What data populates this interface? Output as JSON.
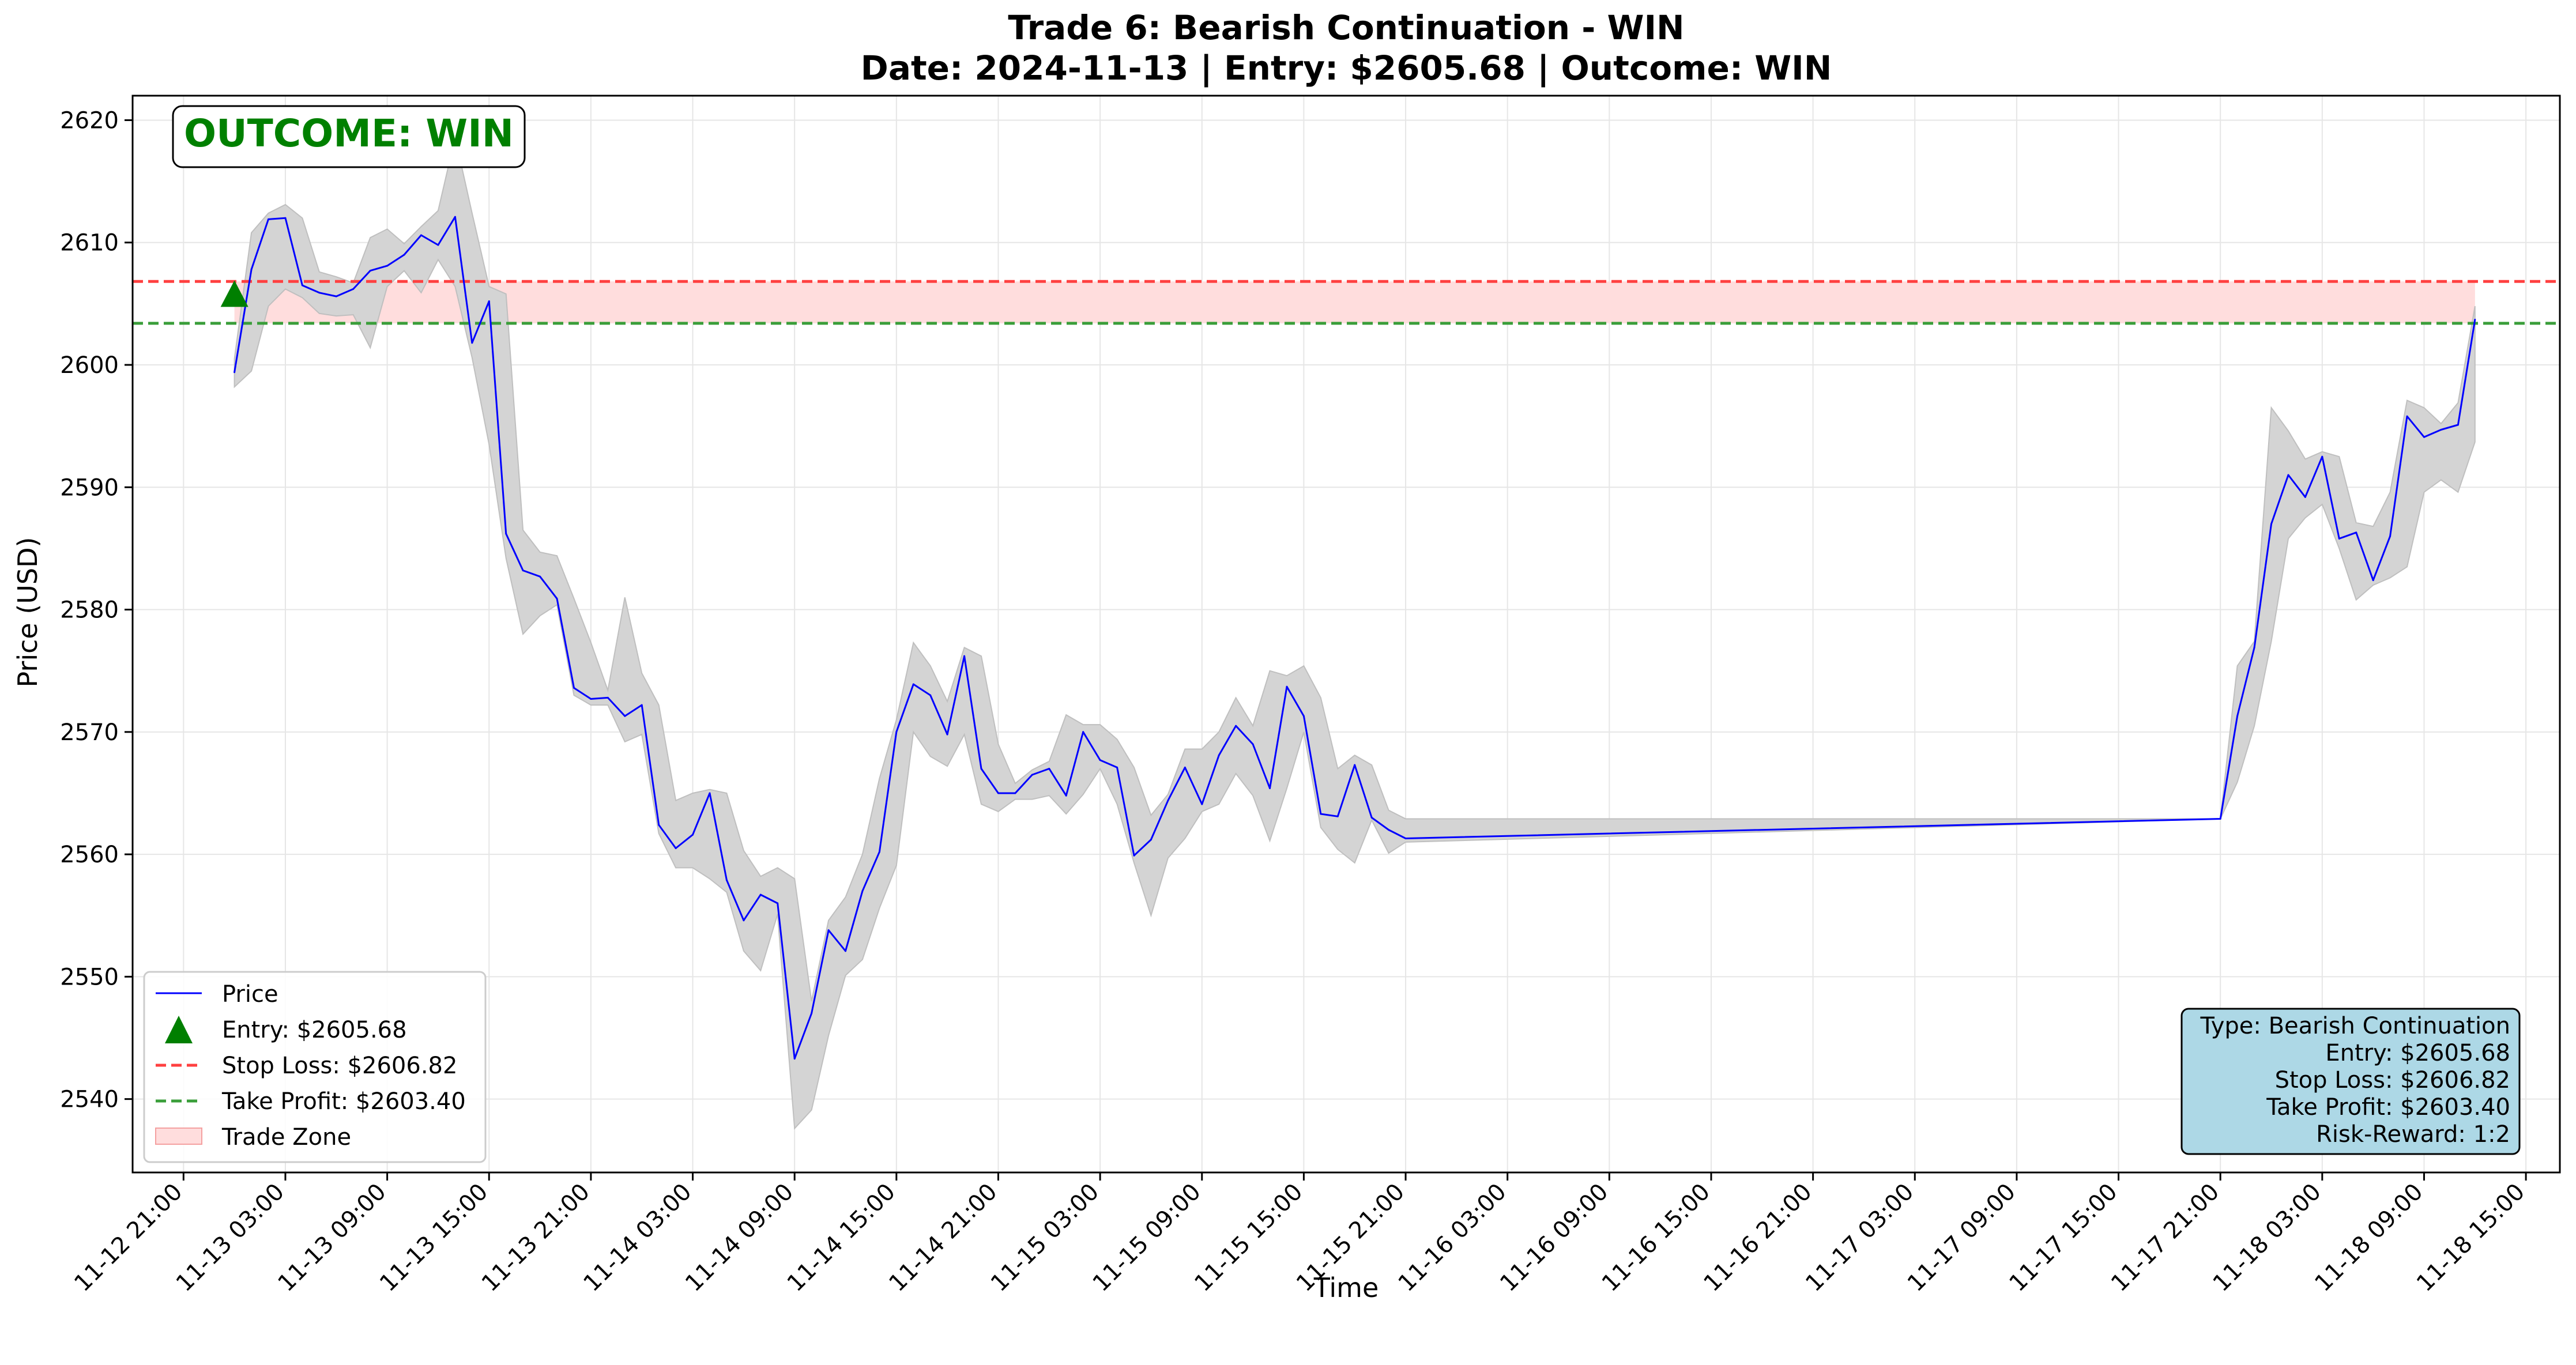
{
  "chart_data": {
    "type": "line",
    "title_line1": "Trade 6: Bearish Continuation - WIN",
    "title_line2": "Date: 2024-11-13 | Entry: $2605.68 | Outcome: WIN",
    "xlabel": "Time",
    "ylabel": "Price (USD)",
    "ylim": [
      2534,
      2622
    ],
    "xlim": [
      "2024-11-12 18:00",
      "2024-11-18 17:00"
    ],
    "y_ticks": [
      2540,
      2550,
      2560,
      2570,
      2580,
      2590,
      2600,
      2610,
      2620
    ],
    "x_ticks": [
      {
        "t": "2024-11-12 21:00",
        "label": "11-12 21:00"
      },
      {
        "t": "2024-11-13 03:00",
        "label": "11-13 03:00"
      },
      {
        "t": "2024-11-13 09:00",
        "label": "11-13 09:00"
      },
      {
        "t": "2024-11-13 15:00",
        "label": "11-13 15:00"
      },
      {
        "t": "2024-11-13 21:00",
        "label": "11-13 21:00"
      },
      {
        "t": "2024-11-14 03:00",
        "label": "11-14 03:00"
      },
      {
        "t": "2024-11-14 09:00",
        "label": "11-14 09:00"
      },
      {
        "t": "2024-11-14 15:00",
        "label": "11-14 15:00"
      },
      {
        "t": "2024-11-14 21:00",
        "label": "11-14 21:00"
      },
      {
        "t": "2024-11-15 03:00",
        "label": "11-15 03:00"
      },
      {
        "t": "2024-11-15 09:00",
        "label": "11-15 09:00"
      },
      {
        "t": "2024-11-15 15:00",
        "label": "11-15 15:00"
      },
      {
        "t": "2024-11-15 21:00",
        "label": "11-15 21:00"
      },
      {
        "t": "2024-11-16 03:00",
        "label": "11-16 03:00"
      },
      {
        "t": "2024-11-16 09:00",
        "label": "11-16 09:00"
      },
      {
        "t": "2024-11-16 15:00",
        "label": "11-16 15:00"
      },
      {
        "t": "2024-11-16 21:00",
        "label": "11-16 21:00"
      },
      {
        "t": "2024-11-17 03:00",
        "label": "11-17 03:00"
      },
      {
        "t": "2024-11-17 09:00",
        "label": "11-17 09:00"
      },
      {
        "t": "2024-11-17 15:00",
        "label": "11-17 15:00"
      },
      {
        "t": "2024-11-17 21:00",
        "label": "11-17 21:00"
      },
      {
        "t": "2024-11-18 03:00",
        "label": "11-18 03:00"
      },
      {
        "t": "2024-11-18 09:00",
        "label": "11-18 09:00"
      },
      {
        "t": "2024-11-18 15:00",
        "label": "11-18 15:00"
      }
    ],
    "price_series": {
      "name": "Price",
      "color": "#0000ff",
      "points": [
        {
          "t": "2024-11-13 00:00",
          "close": 2599.4,
          "low": 2598.2,
          "high": 2600.5
        },
        {
          "t": "2024-11-13 01:00",
          "close": 2607.8,
          "low": 2599.5,
          "high": 2610.8
        },
        {
          "t": "2024-11-13 02:00",
          "close": 2611.9,
          "low": 2604.8,
          "high": 2612.4
        },
        {
          "t": "2024-11-13 03:00",
          "close": 2612.0,
          "low": 2606.2,
          "high": 2613.1
        },
        {
          "t": "2024-11-13 04:00",
          "close": 2606.5,
          "low": 2605.5,
          "high": 2612.0
        },
        {
          "t": "2024-11-13 05:00",
          "close": 2605.9,
          "low": 2604.2,
          "high": 2607.6
        },
        {
          "t": "2024-11-13 06:00",
          "close": 2605.6,
          "low": 2604.0,
          "high": 2607.2
        },
        {
          "t": "2024-11-13 07:00",
          "close": 2606.2,
          "low": 2604.1,
          "high": 2606.7
        },
        {
          "t": "2024-11-13 08:00",
          "close": 2607.7,
          "low": 2601.4,
          "high": 2610.4
        },
        {
          "t": "2024-11-13 09:00",
          "close": 2608.1,
          "low": 2606.4,
          "high": 2611.1
        },
        {
          "t": "2024-11-13 10:00",
          "close": 2609.0,
          "low": 2607.7,
          "high": 2609.9
        },
        {
          "t": "2024-11-13 11:00",
          "close": 2610.6,
          "low": 2605.9,
          "high": 2611.3
        },
        {
          "t": "2024-11-13 12:00",
          "close": 2609.8,
          "low": 2608.6,
          "high": 2612.6
        },
        {
          "t": "2024-11-13 13:00",
          "close": 2612.1,
          "low": 2606.4,
          "high": 2618.6
        },
        {
          "t": "2024-11-13 14:00",
          "close": 2601.8,
          "low": 2600.6,
          "high": 2612.4
        },
        {
          "t": "2024-11-13 15:00",
          "close": 2605.2,
          "low": 2593.5,
          "high": 2606.4
        },
        {
          "t": "2024-11-13 16:00",
          "close": 2586.2,
          "low": 2584.2,
          "high": 2605.8
        },
        {
          "t": "2024-11-13 17:00",
          "close": 2583.2,
          "low": 2578.0,
          "high": 2586.5
        },
        {
          "t": "2024-11-13 18:00",
          "close": 2582.7,
          "low": 2579.5,
          "high": 2584.7
        },
        {
          "t": "2024-11-13 19:00",
          "close": 2580.9,
          "low": 2580.4,
          "high": 2584.4
        },
        {
          "t": "2024-11-13 20:00",
          "close": 2573.6,
          "low": 2573.0,
          "high": 2580.9
        },
        {
          "t": "2024-11-13 21:00",
          "close": 2572.7,
          "low": 2572.2,
          "high": 2577.3
        },
        {
          "t": "2024-11-13 22:00",
          "close": 2572.8,
          "low": 2572.2,
          "high": 2573.4
        },
        {
          "t": "2024-11-13 23:00",
          "close": 2571.3,
          "low": 2569.2,
          "high": 2581.0
        },
        {
          "t": "2024-11-14 00:00",
          "close": 2572.2,
          "low": 2569.8,
          "high": 2574.8
        },
        {
          "t": "2024-11-14 01:00",
          "close": 2562.4,
          "low": 2561.7,
          "high": 2572.2
        },
        {
          "t": "2024-11-14 02:00",
          "close": 2560.5,
          "low": 2558.9,
          "high": 2564.4
        },
        {
          "t": "2024-11-14 03:00",
          "close": 2561.6,
          "low": 2558.9,
          "high": 2565.0
        },
        {
          "t": "2024-11-14 04:00",
          "close": 2565.0,
          "low": 2558.0,
          "high": 2565.3
        },
        {
          "t": "2024-11-14 05:00",
          "close": 2557.9,
          "low": 2556.9,
          "high": 2565.0
        },
        {
          "t": "2024-11-14 06:00",
          "close": 2554.6,
          "low": 2552.1,
          "high": 2560.3
        },
        {
          "t": "2024-11-14 07:00",
          "close": 2556.7,
          "low": 2550.5,
          "high": 2558.2
        },
        {
          "t": "2024-11-14 08:00",
          "close": 2556.0,
          "low": 2555.1,
          "high": 2558.9
        },
        {
          "t": "2024-11-14 09:00",
          "close": 2543.3,
          "low": 2537.6,
          "high": 2558.0
        },
        {
          "t": "2024-11-14 10:00",
          "close": 2547.0,
          "low": 2539.1,
          "high": 2548.0
        },
        {
          "t": "2024-11-14 11:00",
          "close": 2553.8,
          "low": 2545.2,
          "high": 2554.6
        },
        {
          "t": "2024-11-14 12:00",
          "close": 2552.1,
          "low": 2550.1,
          "high": 2556.5
        },
        {
          "t": "2024-11-14 13:00",
          "close": 2557.0,
          "low": 2551.4,
          "high": 2560.0
        },
        {
          "t": "2024-11-14 14:00",
          "close": 2560.2,
          "low": 2555.6,
          "high": 2566.2
        },
        {
          "t": "2024-11-14 15:00",
          "close": 2570.0,
          "low": 2559.1,
          "high": 2571.0
        },
        {
          "t": "2024-11-14 16:00",
          "close": 2573.9,
          "low": 2570.0,
          "high": 2577.3
        },
        {
          "t": "2024-11-14 17:00",
          "close": 2573.0,
          "low": 2568.0,
          "high": 2575.4
        },
        {
          "t": "2024-11-14 18:00",
          "close": 2569.8,
          "low": 2567.2,
          "high": 2572.5
        },
        {
          "t": "2024-11-14 19:00",
          "close": 2576.2,
          "low": 2569.8,
          "high": 2576.9
        },
        {
          "t": "2024-11-14 20:00",
          "close": 2567.0,
          "low": 2564.1,
          "high": 2576.2
        },
        {
          "t": "2024-11-14 21:00",
          "close": 2565.0,
          "low": 2563.5,
          "high": 2569.0
        },
        {
          "t": "2024-11-14 22:00",
          "close": 2565.0,
          "low": 2564.5,
          "high": 2565.8
        },
        {
          "t": "2024-11-14 23:00",
          "close": 2566.5,
          "low": 2564.5,
          "high": 2566.9
        },
        {
          "t": "2024-11-15 00:00",
          "close": 2567.0,
          "low": 2564.8,
          "high": 2567.6
        },
        {
          "t": "2024-11-15 01:00",
          "close": 2564.8,
          "low": 2563.3,
          "high": 2571.4
        },
        {
          "t": "2024-11-15 02:00",
          "close": 2570.0,
          "low": 2564.9,
          "high": 2570.6
        },
        {
          "t": "2024-11-15 03:00",
          "close": 2567.7,
          "low": 2567.0,
          "high": 2570.6
        },
        {
          "t": "2024-11-15 04:00",
          "close": 2567.1,
          "low": 2564.1,
          "high": 2569.4
        },
        {
          "t": "2024-11-15 05:00",
          "close": 2559.9,
          "low": 2559.3,
          "high": 2567.1
        },
        {
          "t": "2024-11-15 06:00",
          "close": 2561.2,
          "low": 2555.0,
          "high": 2563.2
        },
        {
          "t": "2024-11-15 07:00",
          "close": 2564.4,
          "low": 2559.7,
          "high": 2564.9
        },
        {
          "t": "2024-11-15 08:00",
          "close": 2567.1,
          "low": 2561.3,
          "high": 2568.6
        },
        {
          "t": "2024-11-15 09:00",
          "close": 2564.1,
          "low": 2563.5,
          "high": 2568.6
        },
        {
          "t": "2024-11-15 10:00",
          "close": 2568.1,
          "low": 2564.1,
          "high": 2570.0
        },
        {
          "t": "2024-11-15 11:00",
          "close": 2570.5,
          "low": 2566.6,
          "high": 2572.8
        },
        {
          "t": "2024-11-15 12:00",
          "close": 2569.0,
          "low": 2564.8,
          "high": 2570.5
        },
        {
          "t": "2024-11-15 13:00",
          "close": 2565.4,
          "low": 2561.1,
          "high": 2575.0
        },
        {
          "t": "2024-11-15 14:00",
          "close": 2573.7,
          "low": 2565.4,
          "high": 2574.6
        },
        {
          "t": "2024-11-15 15:00",
          "close": 2571.3,
          "low": 2570.0,
          "high": 2575.4
        },
        {
          "t": "2024-11-15 16:00",
          "close": 2563.3,
          "low": 2562.2,
          "high": 2572.8
        },
        {
          "t": "2024-11-15 17:00",
          "close": 2563.1,
          "low": 2560.4,
          "high": 2567.0
        },
        {
          "t": "2024-11-15 18:00",
          "close": 2567.3,
          "low": 2559.3,
          "high": 2568.1
        },
        {
          "t": "2024-11-15 19:00",
          "close": 2563.0,
          "low": 2562.8,
          "high": 2567.3
        },
        {
          "t": "2024-11-15 20:00",
          "close": 2562.0,
          "low": 2560.1,
          "high": 2563.6
        },
        {
          "t": "2024-11-15 21:00",
          "close": 2561.3,
          "low": 2561.0,
          "high": 2562.9
        },
        {
          "t": "2024-11-17 21:00",
          "close": 2562.9,
          "low": 2562.9,
          "high": 2562.9
        },
        {
          "t": "2024-11-17 22:00",
          "close": 2571.3,
          "low": 2565.9,
          "high": 2575.4
        },
        {
          "t": "2024-11-17 23:00",
          "close": 2576.9,
          "low": 2570.5,
          "high": 2577.4
        },
        {
          "t": "2024-11-18 00:00",
          "close": 2587.0,
          "low": 2577.4,
          "high": 2596.5
        },
        {
          "t": "2024-11-18 01:00",
          "close": 2591.0,
          "low": 2585.8,
          "high": 2594.6
        },
        {
          "t": "2024-11-18 02:00",
          "close": 2589.2,
          "low": 2587.5,
          "high": 2592.3
        },
        {
          "t": "2024-11-18 03:00",
          "close": 2592.5,
          "low": 2588.6,
          "high": 2592.9
        },
        {
          "t": "2024-11-18 04:00",
          "close": 2585.8,
          "low": 2585.0,
          "high": 2592.5
        },
        {
          "t": "2024-11-18 05:00",
          "close": 2586.3,
          "low": 2580.8,
          "high": 2587.1
        },
        {
          "t": "2024-11-18 06:00",
          "close": 2582.4,
          "low": 2582.0,
          "high": 2586.8
        },
        {
          "t": "2024-11-18 07:00",
          "close": 2586.0,
          "low": 2582.6,
          "high": 2589.6
        },
        {
          "t": "2024-11-18 08:00",
          "close": 2595.8,
          "low": 2583.5,
          "high": 2597.1
        },
        {
          "t": "2024-11-18 09:00",
          "close": 2594.1,
          "low": 2589.6,
          "high": 2596.5
        },
        {
          "t": "2024-11-18 10:00",
          "close": 2594.7,
          "low": 2590.6,
          "high": 2595.2
        },
        {
          "t": "2024-11-18 11:00",
          "close": 2595.1,
          "low": 2589.6,
          "high": 2596.9
        },
        {
          "t": "2024-11-18 12:00",
          "close": 2603.7,
          "low": 2593.7,
          "high": 2604.8
        }
      ]
    },
    "band": {
      "color": "#d4d4d4",
      "stroke": "#bfbfbf"
    },
    "entry": {
      "t": "2024-11-13 00:00",
      "price": 2605.68,
      "color": "#007f00",
      "label": "Entry: $2605.68"
    },
    "stop_loss": {
      "price": 2606.82,
      "color": "#ff4040",
      "label": "Stop Loss: $2606.82"
    },
    "take_profit": {
      "price": 2603.4,
      "color": "#3a9e3a",
      "label": "Take Profit: $2603.40"
    },
    "trade_zone": {
      "from": 2603.4,
      "to": 2606.82,
      "t_start": "2024-11-13 00:00",
      "t_end": "2024-11-18 12:00",
      "color": "#ffdddd",
      "label": "Trade Zone"
    },
    "legend_placement": "lower-left",
    "grid": true,
    "outcome_badge": {
      "text": "OUTCOME: WIN",
      "color": "#008000"
    },
    "info_box": {
      "lines": [
        "Type: Bearish Continuation",
        "Entry: $2605.68",
        "Stop Loss: $2606.82",
        "Take Profit: $2603.40",
        "Risk-Reward: 1:2"
      ],
      "background": "#add8e6",
      "placement": "lower-right"
    }
  }
}
